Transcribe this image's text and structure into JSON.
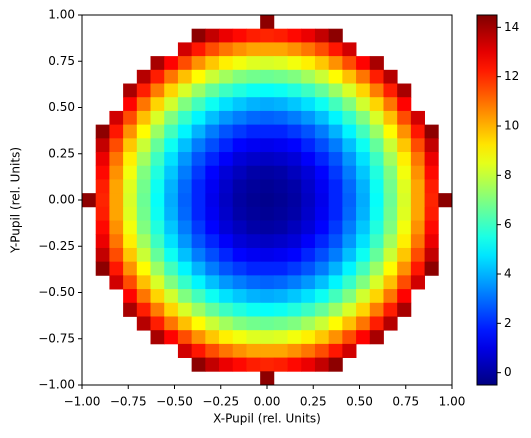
{
  "chart_data": {
    "type": "heatmap",
    "colormap": "jet",
    "x_label": "X-Pupil (rel. Units)",
    "y_label": "Y-Pupil (rel. Units)",
    "xlim": [
      -1,
      1
    ],
    "ylim": [
      -1,
      1
    ],
    "xticks": [
      {
        "value": -1,
        "label": "−1.00"
      },
      {
        "value": -0.75,
        "label": "−0.75"
      },
      {
        "value": -0.5,
        "label": "−0.50"
      },
      {
        "value": -0.25,
        "label": "−0.25"
      },
      {
        "value": 0,
        "label": "0.00"
      },
      {
        "value": 0.25,
        "label": "0.25"
      },
      {
        "value": 0.5,
        "label": "0.50"
      },
      {
        "value": 0.75,
        "label": "0.75"
      },
      {
        "value": 1,
        "label": "1.00"
      }
    ],
    "yticks": [
      {
        "value": -1,
        "label": "−1.00"
      },
      {
        "value": -0.75,
        "label": "−0.75"
      },
      {
        "value": -0.5,
        "label": "−0.50"
      },
      {
        "value": -0.25,
        "label": "−0.25"
      },
      {
        "value": 0,
        "label": "0.00"
      },
      {
        "value": 0.25,
        "label": "0.25"
      },
      {
        "value": 0.5,
        "label": "0.50"
      },
      {
        "value": 0.75,
        "label": "0.75"
      },
      {
        "value": 1,
        "label": "1.00"
      }
    ],
    "zlim": [
      -0.5,
      14.5
    ],
    "zticks": [
      0,
      2,
      4,
      6,
      8,
      10,
      12,
      14
    ],
    "values": [
      [
        null,
        null,
        null,
        null,
        null,
        null,
        null,
        null,
        null,
        null,
        null,
        null,
        null,
        14.3,
        null,
        null,
        null,
        null,
        null,
        null,
        null,
        null,
        null,
        null,
        null,
        null,
        null
      ],
      [
        null,
        null,
        null,
        null,
        null,
        null,
        null,
        null,
        14.3,
        13.5,
        12.9,
        12.5,
        12.2,
        12.1,
        12.2,
        12.5,
        12.9,
        13.5,
        14.3,
        null,
        null,
        null,
        null,
        null,
        null,
        null,
        null
      ],
      [
        null,
        null,
        null,
        null,
        null,
        null,
        null,
        13.3,
        12.3,
        11.5,
        10.9,
        10.5,
        10.2,
        10.2,
        10.2,
        10.5,
        10.9,
        11.5,
        12.3,
        13.3,
        null,
        null,
        null,
        null,
        null,
        null,
        null
      ],
      [
        null,
        null,
        null,
        null,
        null,
        13.9,
        12.6,
        11.5,
        10.5,
        9.7,
        9.1,
        8.7,
        8.4,
        8.3,
        8.4,
        8.7,
        9.1,
        9.7,
        10.5,
        11.5,
        12.6,
        13.9,
        null,
        null,
        null,
        null,
        null
      ],
      [
        null,
        null,
        null,
        null,
        13.7,
        12.2,
        10.9,
        9.8,
        8.9,
        8.1,
        7.5,
        7.0,
        6.8,
        6.7,
        6.8,
        7.0,
        7.5,
        8.1,
        8.9,
        9.8,
        10.9,
        12.2,
        13.7,
        null,
        null,
        null,
        null
      ],
      [
        null,
        null,
        null,
        13.9,
        12.2,
        10.8,
        9.5,
        8.3,
        7.4,
        6.6,
        6.0,
        5.6,
        5.3,
        5.2,
        5.3,
        5.6,
        6.0,
        6.6,
        7.4,
        8.3,
        9.5,
        10.8,
        12.2,
        13.9,
        null,
        null,
        null
      ],
      [
        null,
        null,
        null,
        12.6,
        10.9,
        9.5,
        8.2,
        7.0,
        6.1,
        5.3,
        4.7,
        4.3,
        4.0,
        3.9,
        4.0,
        4.3,
        4.7,
        5.3,
        6.1,
        7.0,
        8.2,
        9.5,
        10.9,
        12.6,
        null,
        null,
        null
      ],
      [
        null,
        null,
        13.3,
        11.5,
        9.8,
        8.3,
        7.0,
        5.9,
        5.0,
        4.2,
        3.6,
        3.2,
        2.9,
        2.8,
        2.9,
        3.2,
        3.6,
        4.2,
        5.0,
        5.9,
        7.0,
        8.3,
        9.8,
        11.5,
        13.3,
        null,
        null
      ],
      [
        null,
        14.3,
        12.3,
        10.5,
        8.9,
        7.4,
        6.1,
        5.0,
        4.0,
        3.2,
        2.6,
        2.2,
        1.9,
        1.9,
        1.9,
        2.2,
        2.6,
        3.2,
        4.0,
        5.0,
        6.1,
        7.4,
        8.9,
        10.5,
        12.3,
        14.3,
        null
      ],
      [
        null,
        13.5,
        11.5,
        9.7,
        8.1,
        6.6,
        5.3,
        4.2,
        3.2,
        2.5,
        1.9,
        1.4,
        1.2,
        1.1,
        1.2,
        1.4,
        1.9,
        2.5,
        3.2,
        4.2,
        5.3,
        6.6,
        8.1,
        9.7,
        11.5,
        13.5,
        null
      ],
      [
        null,
        12.9,
        10.9,
        9.1,
        7.5,
        6.0,
        4.7,
        3.6,
        2.6,
        1.9,
        1.3,
        0.8,
        0.6,
        0.5,
        0.6,
        0.8,
        1.3,
        1.9,
        2.6,
        3.6,
        4.7,
        6.0,
        7.5,
        9.1,
        10.9,
        12.9,
        null
      ],
      [
        null,
        12.5,
        10.5,
        8.7,
        7.0,
        5.6,
        4.3,
        3.2,
        2.2,
        1.4,
        0.8,
        0.4,
        0.1,
        0.0,
        0.1,
        0.4,
        0.8,
        1.4,
        2.2,
        3.2,
        4.3,
        5.6,
        7.0,
        8.7,
        10.5,
        12.5,
        null
      ],
      [
        null,
        12.2,
        10.2,
        8.4,
        6.8,
        5.3,
        4.0,
        2.9,
        1.9,
        1.2,
        0.6,
        0.1,
        -0.1,
        -0.2,
        -0.1,
        0.1,
        0.6,
        1.2,
        1.9,
        2.9,
        4.0,
        5.3,
        6.8,
        8.4,
        10.2,
        12.2,
        null
      ],
      [
        14.3,
        12.1,
        10.2,
        8.3,
        6.7,
        5.2,
        3.9,
        2.8,
        1.9,
        1.1,
        0.5,
        0.0,
        -0.2,
        -0.3,
        -0.2,
        0.0,
        0.5,
        1.1,
        1.9,
        2.8,
        3.9,
        5.2,
        6.7,
        8.3,
        10.2,
        12.1,
        14.3
      ],
      [
        null,
        12.2,
        10.2,
        8.4,
        6.8,
        5.3,
        4.0,
        2.9,
        1.9,
        1.2,
        0.6,
        0.1,
        -0.1,
        -0.2,
        -0.1,
        0.1,
        0.6,
        1.2,
        1.9,
        2.9,
        4.0,
        5.3,
        6.8,
        8.4,
        10.2,
        12.2,
        null
      ],
      [
        null,
        12.5,
        10.5,
        8.7,
        7.0,
        5.6,
        4.3,
        3.2,
        2.2,
        1.4,
        0.8,
        0.4,
        0.1,
        0.0,
        0.1,
        0.4,
        0.8,
        1.4,
        2.2,
        3.2,
        4.3,
        5.6,
        7.0,
        8.7,
        10.5,
        12.5,
        null
      ],
      [
        null,
        12.9,
        10.9,
        9.1,
        7.5,
        6.0,
        4.7,
        3.6,
        2.6,
        1.9,
        1.3,
        0.8,
        0.6,
        0.5,
        0.6,
        0.8,
        1.3,
        1.9,
        2.6,
        3.6,
        4.7,
        6.0,
        7.5,
        9.1,
        10.9,
        12.9,
        null
      ],
      [
        null,
        13.5,
        11.5,
        9.7,
        8.1,
        6.6,
        5.3,
        4.2,
        3.2,
        2.5,
        1.9,
        1.4,
        1.2,
        1.1,
        1.2,
        1.4,
        1.9,
        2.5,
        3.2,
        4.2,
        5.3,
        6.6,
        8.1,
        9.7,
        11.5,
        13.5,
        null
      ],
      [
        null,
        14.3,
        12.3,
        10.5,
        8.9,
        7.4,
        6.1,
        5.0,
        4.0,
        3.2,
        2.6,
        2.2,
        1.9,
        1.9,
        1.9,
        2.2,
        2.6,
        3.2,
        4.0,
        5.0,
        6.1,
        7.4,
        8.9,
        10.5,
        12.3,
        14.3,
        null
      ],
      [
        null,
        null,
        13.3,
        11.5,
        9.8,
        8.3,
        7.0,
        5.9,
        5.0,
        4.2,
        3.6,
        3.2,
        2.9,
        2.8,
        2.9,
        3.2,
        3.6,
        4.2,
        5.0,
        5.9,
        7.0,
        8.3,
        9.8,
        11.5,
        13.3,
        null,
        null
      ],
      [
        null,
        null,
        null,
        12.6,
        10.9,
        9.5,
        8.2,
        7.0,
        6.1,
        5.3,
        4.7,
        4.3,
        4.0,
        3.9,
        4.0,
        4.3,
        4.7,
        5.3,
        6.1,
        7.0,
        8.2,
        9.5,
        10.9,
        12.6,
        null,
        null,
        null
      ],
      [
        null,
        null,
        null,
        13.9,
        12.2,
        10.8,
        9.5,
        8.3,
        7.4,
        6.6,
        6.0,
        5.6,
        5.3,
        5.2,
        5.3,
        5.6,
        6.0,
        6.6,
        7.4,
        8.3,
        9.5,
        10.8,
        12.2,
        13.9,
        null,
        null,
        null
      ],
      [
        null,
        null,
        null,
        null,
        13.7,
        12.2,
        10.9,
        9.8,
        8.9,
        8.1,
        7.5,
        7.0,
        6.8,
        6.7,
        6.8,
        7.0,
        7.5,
        8.1,
        8.9,
        9.8,
        10.9,
        12.2,
        13.7,
        null,
        null,
        null,
        null
      ],
      [
        null,
        null,
        null,
        null,
        null,
        13.9,
        12.6,
        11.5,
        10.5,
        9.7,
        9.1,
        8.7,
        8.4,
        8.3,
        8.4,
        8.7,
        9.1,
        9.7,
        10.5,
        11.5,
        12.6,
        13.9,
        null,
        null,
        null,
        null,
        null
      ],
      [
        null,
        null,
        null,
        null,
        null,
        null,
        null,
        13.3,
        12.3,
        11.5,
        10.9,
        10.5,
        10.2,
        10.2,
        10.2,
        10.5,
        10.9,
        11.5,
        12.3,
        13.3,
        null,
        null,
        null,
        null,
        null,
        null,
        null
      ],
      [
        null,
        null,
        null,
        null,
        null,
        null,
        null,
        null,
        14.3,
        13.5,
        12.9,
        12.5,
        12.2,
        12.1,
        12.2,
        12.5,
        12.9,
        13.5,
        14.3,
        null,
        null,
        null,
        null,
        null,
        null,
        null,
        null
      ],
      [
        null,
        null,
        null,
        null,
        null,
        null,
        null,
        null,
        null,
        null,
        null,
        null,
        null,
        14.3,
        null,
        null,
        null,
        null,
        null,
        null,
        null,
        null,
        null,
        null,
        null,
        null,
        null
      ]
    ]
  }
}
